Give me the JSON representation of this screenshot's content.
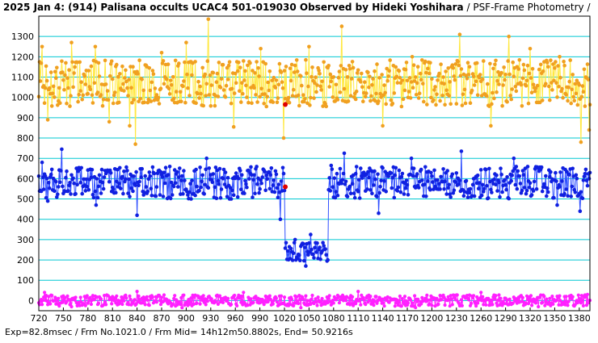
{
  "header": {
    "title": "2025 Jan 4: (914) Palisana occults UCAC4 501-019030 Observed by Hideki Yoshihara",
    "method": " / PSF-Frame Photometry /"
  },
  "footer": {
    "text": "Exp=82.8msec / Frm No.1021.0 / Frm Mid= 14h12m50.8802s,  End= 50.9216s"
  },
  "colors": {
    "background": "#ffffff",
    "gridline": "#00c8d2",
    "yellow_line": "#ffe840",
    "yellow_point": "#f0a020",
    "blue_line": "#3050ff",
    "blue_point": "#1020e0",
    "magenta": "#ff20ff",
    "highlight": "#e00000"
  },
  "chart_data": {
    "type": "line",
    "title": "",
    "xlabel": "",
    "ylabel": "",
    "xlim": [
      720,
      1393
    ],
    "ylim": [
      -50,
      1400
    ],
    "grid": "horizontal",
    "xticks": [
      720,
      750,
      780,
      810,
      840,
      870,
      900,
      930,
      960,
      990,
      1020,
      1050,
      1080,
      1110,
      1140,
      1170,
      1200,
      1230,
      1260,
      1290,
      1320,
      1350,
      1380
    ],
    "yticks": [
      0,
      100,
      200,
      300,
      400,
      500,
      600,
      700,
      800,
      900,
      1000,
      1100,
      1200,
      1300
    ],
    "series": [
      {
        "color": "yellow",
        "baseline": 1070,
        "anchors": [
          {
            "x": 724,
            "y": 1250
          },
          {
            "x": 731,
            "y": 890
          },
          {
            "x": 760,
            "y": 1270
          },
          {
            "x": 789,
            "y": 1250
          },
          {
            "x": 806,
            "y": 880
          },
          {
            "x": 831,
            "y": 860
          },
          {
            "x": 838,
            "y": 770
          },
          {
            "x": 870,
            "y": 1220
          },
          {
            "x": 900,
            "y": 1270
          },
          {
            "x": 927,
            "y": 1385
          },
          {
            "x": 958,
            "y": 855
          },
          {
            "x": 991,
            "y": 1240
          },
          {
            "x": 1019,
            "y": 800
          },
          {
            "x": 1050,
            "y": 1250
          },
          {
            "x": 1090,
            "y": 1350
          },
          {
            "x": 1116,
            "y": 980
          },
          {
            "x": 1140,
            "y": 860
          },
          {
            "x": 1176,
            "y": 1200
          },
          {
            "x": 1234,
            "y": 1310
          },
          {
            "x": 1272,
            "y": 860
          },
          {
            "x": 1294,
            "y": 1300
          },
          {
            "x": 1320,
            "y": 1240
          },
          {
            "x": 1356,
            "y": 1200
          },
          {
            "x": 1382,
            "y": 780
          },
          {
            "x": 1392,
            "y": 840
          }
        ]
      },
      {
        "color": "blue",
        "baseline": 580,
        "event": {
          "start": 1021,
          "end": 1073,
          "level": 240
        },
        "anchors": [
          {
            "x": 724,
            "y": 680
          },
          {
            "x": 731,
            "y": 490
          },
          {
            "x": 748,
            "y": 745
          },
          {
            "x": 790,
            "y": 470
          },
          {
            "x": 840,
            "y": 420
          },
          {
            "x": 880,
            "y": 660
          },
          {
            "x": 925,
            "y": 700
          },
          {
            "x": 1015,
            "y": 400
          },
          {
            "x": 1033,
            "y": 300
          },
          {
            "x": 1046,
            "y": 170
          },
          {
            "x": 1052,
            "y": 325
          },
          {
            "x": 1077,
            "y": 665
          },
          {
            "x": 1093,
            "y": 725
          },
          {
            "x": 1135,
            "y": 430
          },
          {
            "x": 1175,
            "y": 700
          },
          {
            "x": 1236,
            "y": 735
          },
          {
            "x": 1300,
            "y": 700
          },
          {
            "x": 1353,
            "y": 470
          },
          {
            "x": 1381,
            "y": 440
          },
          {
            "x": 1392,
            "y": 600
          }
        ]
      },
      {
        "color": "magenta",
        "baseline": 0,
        "anchors": [
          {
            "x": 727,
            "y": 40
          },
          {
            "x": 760,
            "y": -30
          },
          {
            "x": 840,
            "y": 45
          },
          {
            "x": 895,
            "y": -35
          },
          {
            "x": 970,
            "y": 40
          },
          {
            "x": 1040,
            "y": -35
          },
          {
            "x": 1110,
            "y": 45
          },
          {
            "x": 1180,
            "y": -35
          },
          {
            "x": 1260,
            "y": 40
          },
          {
            "x": 1330,
            "y": -30
          },
          {
            "x": 1390,
            "y": 30
          }
        ]
      }
    ],
    "markers": [
      {
        "x": 1021,
        "y": 965
      },
      {
        "x": 1021,
        "y": 560
      }
    ]
  }
}
